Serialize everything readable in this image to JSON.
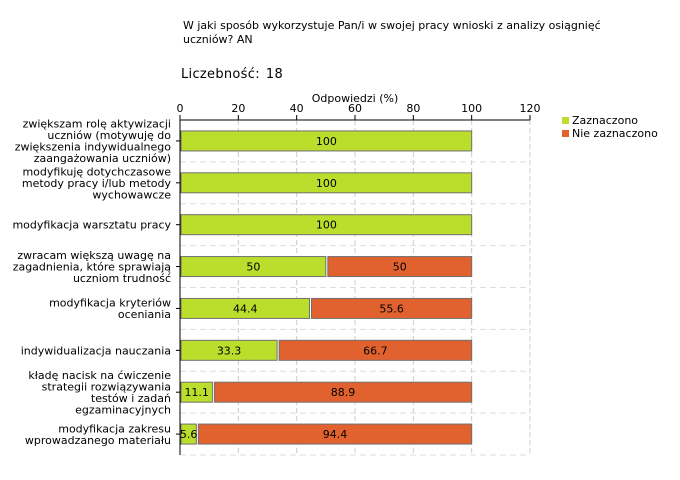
{
  "chart_data": {
    "type": "bar",
    "orientation": "horizontal",
    "stacked": true,
    "title": "W jaki sposób wykorzystuje Pan/i w swojej pracy wnioski z analizy osiągnięć uczniów? AN",
    "count_label": "Liczebność:",
    "count_value": "18",
    "xlabel": "Odpowiedzi (%)",
    "xlim": [
      0,
      120
    ],
    "xticks": [
      0,
      20,
      40,
      60,
      80,
      100,
      120
    ],
    "grid": true,
    "legend_position": "top-right",
    "categories": [
      [
        "zwiększam rolę aktywizacji",
        "uczniów (motywuję do",
        "zwiększenia indywidualnego",
        "zaangażowania uczniów)"
      ],
      [
        "modyfikuję dotychczasowe",
        "metody pracy i/lub metody",
        "wychowawcze"
      ],
      [
        "modyfikacja warsztatu pracy"
      ],
      [
        "zwracam większą uwagę na",
        "zagadnienia, które sprawiają",
        "uczniom trudność"
      ],
      [
        "modyfikacja kryteriów",
        "oceniania"
      ],
      [
        "indywidualizacja nauczania"
      ],
      [
        "kładę nacisk na ćwiczenie",
        "strategii rozwiązywania",
        "testów i zadań",
        "egzaminacyjnych"
      ],
      [
        "modyfikacja zakresu",
        "wprowadzanego materiału"
      ]
    ],
    "series": [
      {
        "name": "Zaznaczono",
        "color": "#bbdd2c",
        "values": [
          100,
          100,
          100,
          50,
          44.4,
          33.3,
          11.1,
          5.6
        ],
        "labels": [
          "100",
          "100",
          "100",
          "50",
          "44.4",
          "33.3",
          "11.1",
          "5.6"
        ]
      },
      {
        "name": "Nie zaznaczono",
        "color": "#e2622f",
        "values": [
          0,
          0,
          0,
          50,
          55.6,
          66.7,
          88.9,
          94.4
        ],
        "labels": [
          "",
          "",
          "",
          "50",
          "55.6",
          "66.7",
          "88.9",
          "94.4"
        ]
      }
    ]
  }
}
